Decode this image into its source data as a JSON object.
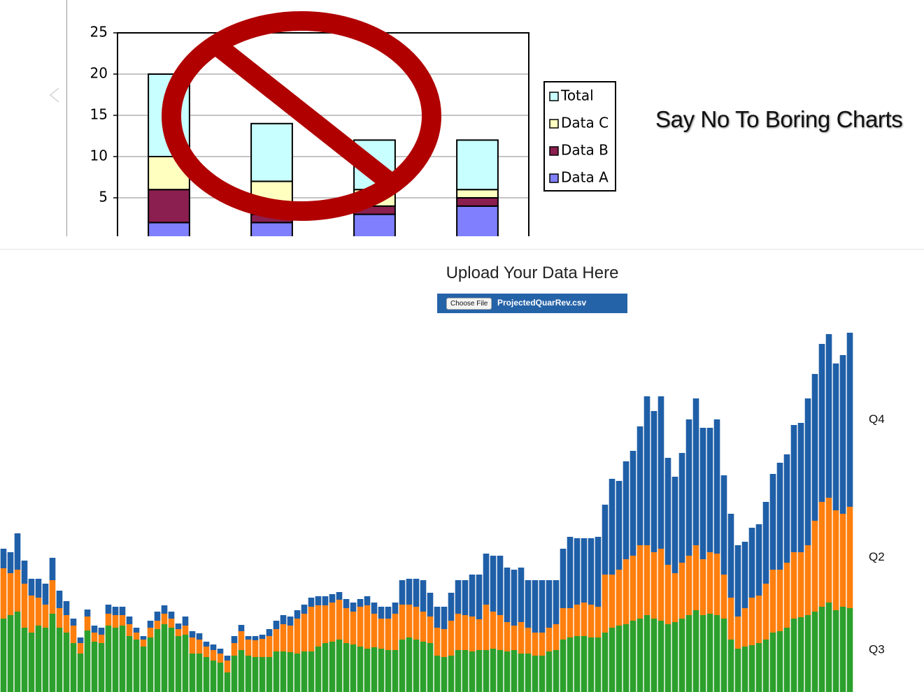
{
  "carousel": {
    "caption": "Say No To Boring Charts"
  },
  "upload": {
    "heading": "Upload Your Data Here",
    "button": "Choose File",
    "file_name": "ProjectedQuarRev.csv"
  },
  "chart_data": [
    {
      "type": "bar",
      "stacked": true,
      "grid": true,
      "legend": "right",
      "categories": [
        null,
        null,
        null,
        null
      ],
      "ylim": [
        0,
        25
      ],
      "yticks": [
        5,
        10,
        15,
        20,
        25
      ],
      "series": [
        {
          "name": "Data A",
          "color": "#8080ff",
          "values": [
            2,
            2,
            3,
            4
          ]
        },
        {
          "name": "Data B",
          "color": "#8b1f4f",
          "values": [
            4,
            1,
            1,
            1
          ]
        },
        {
          "name": "Data C",
          "color": "#ffffc0",
          "values": [
            4,
            4,
            2,
            1
          ]
        },
        {
          "name": "Total",
          "color": "#c8ffff",
          "values": [
            10,
            7,
            6,
            6
          ]
        }
      ]
    },
    {
      "type": "bar",
      "stacked": true,
      "grid": false,
      "legend": "end-labels",
      "categories": [
        null,
        null,
        null,
        null,
        null,
        null,
        null,
        null,
        null,
        null,
        null,
        null,
        null,
        null,
        null,
        null,
        null,
        null,
        null,
        null,
        null,
        null,
        null,
        null,
        null,
        null,
        null,
        null,
        null,
        null,
        null,
        null,
        null,
        null,
        null,
        null,
        null,
        null,
        null,
        null,
        null,
        null,
        null,
        null,
        null,
        null,
        null,
        null,
        null,
        null,
        null,
        null,
        null,
        null,
        null,
        null,
        null,
        null,
        null,
        null,
        null,
        null,
        null,
        null,
        null,
        null,
        null,
        null,
        null,
        null,
        null,
        null,
        null,
        null,
        null,
        null,
        null,
        null,
        null,
        null,
        null,
        null,
        null,
        null,
        null,
        null,
        null,
        null,
        null,
        null,
        null,
        null,
        null,
        null,
        null,
        null,
        null,
        null,
        null,
        null,
        null,
        null,
        null,
        null,
        null,
        null,
        null,
        null,
        null,
        null,
        null,
        null,
        null,
        null,
        null,
        null,
        null,
        null,
        null,
        null,
        null,
        null
      ],
      "ylim": [
        0,
        520
      ],
      "series": [
        {
          "name": "Q3",
          "color": "#2ca02c",
          "values": [
            105,
            110,
            115,
            92,
            85,
            95,
            92,
            112,
            92,
            85,
            70,
            55,
            88,
            72,
            70,
            95,
            92,
            95,
            80,
            75,
            65,
            78,
            90,
            97,
            92,
            80,
            82,
            55,
            55,
            50,
            45,
            42,
            28,
            52,
            60,
            52,
            50,
            50,
            50,
            58,
            58,
            57,
            55,
            58,
            58,
            65,
            70,
            72,
            75,
            70,
            68,
            65,
            62,
            64,
            62,
            60,
            60,
            75,
            78,
            75,
            72,
            70,
            52,
            50,
            52,
            60,
            60,
            58,
            60,
            60,
            62,
            60,
            58,
            60,
            55,
            55,
            52,
            52,
            58,
            60,
            75,
            78,
            80,
            80,
            78,
            78,
            85,
            92,
            95,
            97,
            102,
            105,
            110,
            105,
            102,
            97,
            100,
            105,
            110,
            117,
            110,
            112,
            110,
            105,
            75,
            62,
            65,
            67,
            70,
            75,
            85,
            87,
            92,
            105,
            107,
            110,
            115,
            122,
            128,
            117,
            122,
            120
          ]
        },
        {
          "name": "Q2",
          "color": "#ff7f0e",
          "values": [
            72,
            60,
            60,
            63,
            53,
            40,
            33,
            48,
            28,
            25,
            25,
            15,
            20,
            13,
            12,
            17,
            18,
            15,
            17,
            10,
            10,
            14,
            12,
            15,
            13,
            10,
            13,
            23,
            20,
            15,
            15,
            13,
            17,
            18,
            27,
            23,
            24,
            26,
            30,
            32,
            39,
            38,
            50,
            54,
            64,
            59,
            54,
            56,
            57,
            50,
            47,
            57,
            62,
            48,
            43,
            45,
            52,
            50,
            47,
            47,
            43,
            38,
            40,
            40,
            50,
            52,
            50,
            50,
            44,
            65,
            53,
            50,
            42,
            35,
            45,
            37,
            33,
            33,
            34,
            37,
            45,
            42,
            45,
            48,
            47,
            44,
            83,
            76,
            80,
            93,
            93,
            105,
            100,
            95,
            103,
            85,
            70,
            80,
            85,
            93,
            80,
            88,
            88,
            63,
            60,
            46,
            55,
            68,
            68,
            80,
            90,
            88,
            93,
            95,
            93,
            100,
            130,
            150,
            150,
            143,
            133,
            145
          ]
        },
        {
          "name": "Q4",
          "color": "#1f5fa8",
          "values": [
            28,
            30,
            52,
            33,
            24,
            27,
            30,
            32,
            25,
            20,
            10,
            8,
            10,
            10,
            10,
            13,
            12,
            12,
            11,
            7,
            5,
            10,
            13,
            12,
            10,
            8,
            13,
            9,
            9,
            7,
            8,
            7,
            7,
            10,
            9,
            5,
            6,
            6,
            10,
            12,
            13,
            13,
            12,
            13,
            13,
            13,
            13,
            12,
            11,
            13,
            13,
            11,
            13,
            16,
            17,
            17,
            16,
            35,
            37,
            40,
            45,
            34,
            30,
            32,
            40,
            48,
            50,
            60,
            64,
            73,
            80,
            85,
            78,
            80,
            78,
            68,
            75,
            75,
            68,
            63,
            85,
            102,
            95,
            92,
            95,
            100,
            100,
            137,
            127,
            140,
            150,
            170,
            213,
            202,
            218,
            153,
            138,
            157,
            195,
            210,
            188,
            178,
            192,
            142,
            120,
            102,
            95,
            100,
            102,
            117,
            137,
            153,
            155,
            182,
            185,
            210,
            210,
            226,
            234,
            210,
            227,
            249
          ]
        }
      ]
    }
  ]
}
